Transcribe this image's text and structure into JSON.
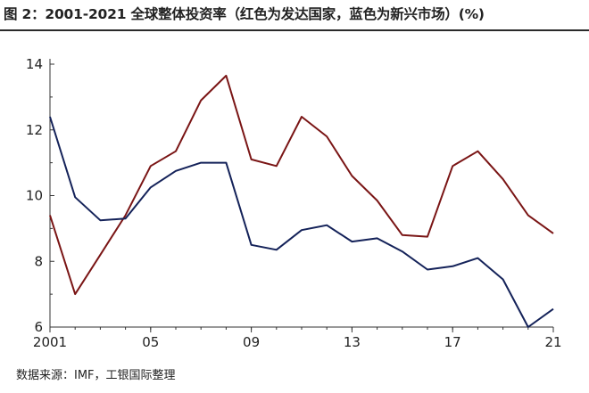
{
  "title": "图 2：2001-2021 全球整体投资率（红色为发达国家，蓝色为新兴市场）(%)",
  "source": "数据来源：IMF，工银国际整理",
  "chart_data": {
    "type": "line",
    "title": "图 2：2001-2021 全球整体投资率（红色为发达国家，蓝色为新兴市场）(%)",
    "xlabel": "",
    "ylabel": "",
    "x": [
      2001,
      2002,
      2003,
      2004,
      2005,
      2006,
      2007,
      2008,
      2009,
      2010,
      2011,
      2012,
      2013,
      2014,
      2015,
      2016,
      2017,
      2018,
      2019,
      2020,
      2021
    ],
    "xlim": [
      2001,
      2021
    ],
    "ylim": [
      6,
      14
    ],
    "y_ticks": [
      6,
      8,
      10,
      12,
      14
    ],
    "y_tick_labels": [
      "6",
      "8",
      "10",
      "12",
      "14"
    ],
    "x_ticks": [
      2001,
      2005,
      2009,
      2013,
      2017,
      2021
    ],
    "x_tick_labels": [
      "2001",
      "05",
      "09",
      "13",
      "17",
      "21"
    ],
    "grid": false,
    "legend": "none",
    "series": [
      {
        "color": "#7a1515",
        "values": [
          9.4,
          7.0,
          8.2,
          9.4,
          10.9,
          11.35,
          12.9,
          13.65,
          11.1,
          10.9,
          12.4,
          11.8,
          10.6,
          9.85,
          8.8,
          8.75,
          10.9,
          11.35,
          10.5,
          9.4,
          8.85
        ]
      },
      {
        "color": "#142259",
        "values": [
          12.4,
          9.95,
          9.25,
          9.3,
          10.25,
          10.75,
          11.0,
          11.0,
          8.5,
          8.35,
          8.95,
          9.1,
          8.6,
          8.7,
          8.3,
          7.75,
          7.85,
          8.1,
          7.45,
          6.0,
          6.55
        ]
      }
    ]
  }
}
